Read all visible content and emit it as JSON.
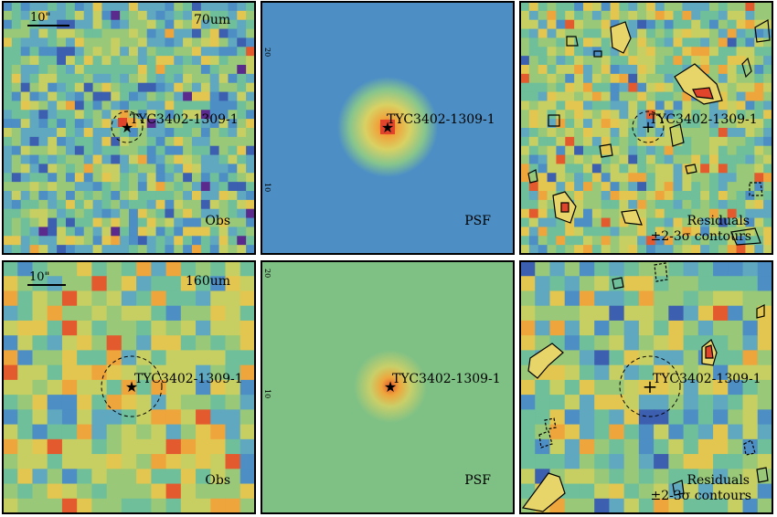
{
  "figure": {
    "panels": [
      {
        "id": "obs-70",
        "label": "Obs",
        "band": "70um",
        "scale_bar": "10\"",
        "source": "TYC3402-1309-1",
        "seed": 11,
        "kind": "obs"
      },
      {
        "id": "psf-70",
        "label": "PSF",
        "source": "TYC3402-1309-1",
        "kind": "psf"
      },
      {
        "id": "res-70",
        "label": "Residuals",
        "sublabel": "±2-3σ contours",
        "source": "TYC3402-1309-1",
        "seed": 23,
        "kind": "res"
      },
      {
        "id": "obs-160",
        "label": "Obs",
        "band": "160um",
        "scale_bar": "10\"",
        "source": "TYC3402-1309-1",
        "seed": 37,
        "kind": "obs"
      },
      {
        "id": "psf-160",
        "label": "PSF",
        "source": "TYC3402-1309-1",
        "kind": "psf"
      },
      {
        "id": "res-160",
        "label": "Residuals",
        "sublabel": "±2-3σ contours",
        "source": "TYC3402-1309-1",
        "seed": 53,
        "kind": "res"
      }
    ],
    "axis_ticks": {
      "psf_70": [
        "20",
        "10"
      ],
      "psf_160": [
        "20",
        "10"
      ]
    },
    "colors": {
      "frame": "#000000",
      "psf70_bg": "#4d8fc4",
      "psf160_bg": "#7fc185",
      "peak": "#e0452b"
    }
  }
}
